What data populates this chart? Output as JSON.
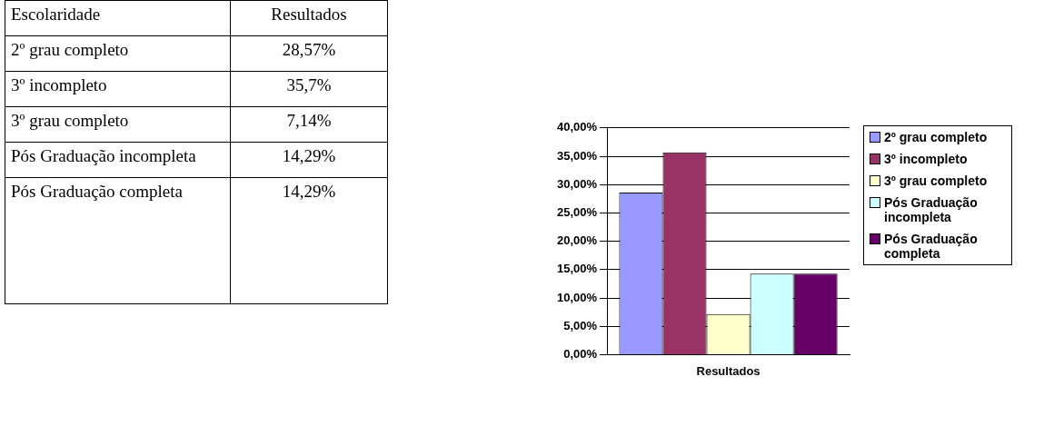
{
  "chart_data": {
    "type": "bar",
    "categories": [
      "Resultados"
    ],
    "annotations": [
      "Escolaridade",
      "28,57%",
      "35,7%",
      "7,14%",
      "14,29%",
      "14,29%"
    ],
    "series": [
      {
        "name": "2º grau completo",
        "color": "#9999ff",
        "values": [
          28.57
        ]
      },
      {
        "name": "3º incompleto",
        "color": "#993366",
        "values": [
          35.7
        ]
      },
      {
        "name": "3º grau completo",
        "color": "#ffffcc",
        "values": [
          7.14
        ]
      },
      {
        "name": "Pós Graduação incompleta",
        "color": "#ccffff",
        "values": [
          14.29
        ]
      },
      {
        "name": "Pós Graduação completa",
        "color": "#660066",
        "values": [
          14.29
        ]
      }
    ],
    "ylim": [
      0,
      40
    ],
    "yticks": [
      {
        "value": 0,
        "label": "0,00%"
      },
      {
        "value": 5,
        "label": "5,00%"
      },
      {
        "value": 10,
        "label": "10,00%"
      },
      {
        "value": 15,
        "label": "15,00%"
      },
      {
        "value": 20,
        "label": "20,00%"
      },
      {
        "value": 25,
        "label": "25,00%"
      },
      {
        "value": 30,
        "label": "30,00%"
      },
      {
        "value": 35,
        "label": "35,00%"
      },
      {
        "value": 40,
        "label": "40,00%"
      }
    ],
    "grid": "y",
    "legend": "right"
  }
}
